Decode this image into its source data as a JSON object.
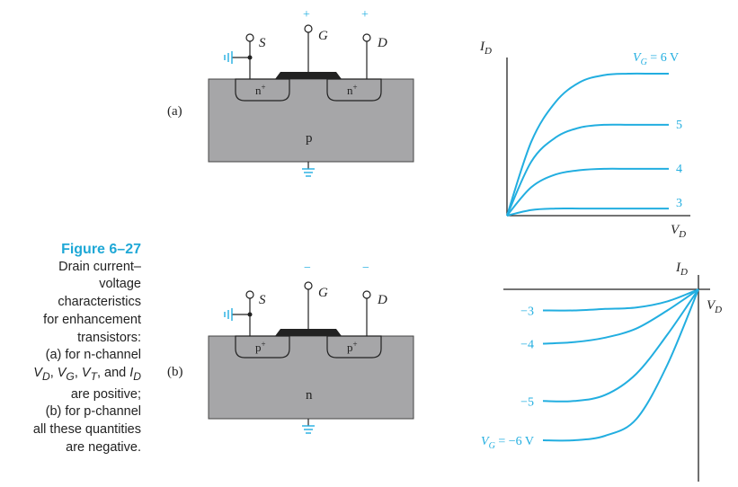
{
  "caption": {
    "figure_number": "Figure 6–27",
    "lines": [
      "Drain current–",
      "voltage",
      "characteristics",
      "for enhancement",
      "transistors:",
      "(a) for n-channel",
      "V_D, V_G, V_T, and I_D",
      "are positive;",
      "(b) for p-channel",
      "all these quantities",
      "are negative."
    ],
    "line_a": "(a) for n-channel",
    "vars_line_rest": "are positive;",
    "line_b": "(b) for p-channel",
    "line_b2": "all these quantities",
    "line_b3": "are negative."
  },
  "panel_a": {
    "label": "(a)",
    "terminals": {
      "source": "S",
      "gate": "G",
      "drain": "D"
    },
    "gate_sign": "+",
    "drain_sign": "+",
    "source_region": "n+",
    "drain_region": "n+",
    "substrate": "p"
  },
  "panel_b": {
    "label": "(b)",
    "terminals": {
      "source": "S",
      "gate": "G",
      "drain": "D"
    },
    "gate_sign": "−",
    "drain_sign": "−",
    "source_region": "p+",
    "drain_region": "p+",
    "substrate": "n"
  },
  "colors": {
    "curve": "#22aee0",
    "accent": "#1fa8d6",
    "substrate": "#a6a6a8",
    "gate": "#222222"
  },
  "chart_data": [
    {
      "type": "line",
      "xlabel": "V_D",
      "ylabel": "I_D",
      "series": [
        {
          "name": "V_G = 6 V",
          "label": "V_G = 6 V",
          "values": [
            0,
            0.52,
            0.8,
            0.94,
            0.99,
            1.0,
            1.0,
            1.0
          ]
        },
        {
          "name": "5",
          "label": "5",
          "values": [
            0,
            0.38,
            0.55,
            0.62,
            0.64,
            0.64,
            0.64,
            0.64
          ]
        },
        {
          "name": "4",
          "label": "4",
          "values": [
            0,
            0.2,
            0.29,
            0.32,
            0.33,
            0.33,
            0.33,
            0.33
          ]
        },
        {
          "name": "3",
          "label": "3",
          "values": [
            0,
            0.04,
            0.05,
            0.05,
            0.05,
            0.05,
            0.05,
            0.05
          ]
        }
      ],
      "x": [
        0,
        0.15,
        0.3,
        0.45,
        0.6,
        0.75,
        0.9,
        1.0
      ],
      "xlim": [
        0,
        1
      ],
      "ylim": [
        0,
        1.1
      ]
    },
    {
      "type": "line",
      "xlabel": "V_D",
      "ylabel": "I_D",
      "series": [
        {
          "name": "−3",
          "label": "−3",
          "values": [
            -0.14,
            -0.14,
            -0.13,
            -0.12,
            -0.08,
            0
          ]
        },
        {
          "name": "−4",
          "label": "−4",
          "values": [
            -0.36,
            -0.35,
            -0.32,
            -0.26,
            -0.14,
            0
          ]
        },
        {
          "name": "−5",
          "label": "−5",
          "values": [
            -0.74,
            -0.74,
            -0.7,
            -0.56,
            -0.3,
            0
          ]
        },
        {
          "name": "V_G = −6 V",
          "label": "V_G = −6 V",
          "values": [
            -1.0,
            -1.0,
            -0.97,
            -0.86,
            -0.5,
            0
          ]
        }
      ],
      "x": [
        -1.0,
        -0.8,
        -0.6,
        -0.4,
        -0.2,
        0
      ],
      "xlim": [
        -1,
        0
      ],
      "ylim": [
        -1.1,
        0
      ]
    }
  ]
}
